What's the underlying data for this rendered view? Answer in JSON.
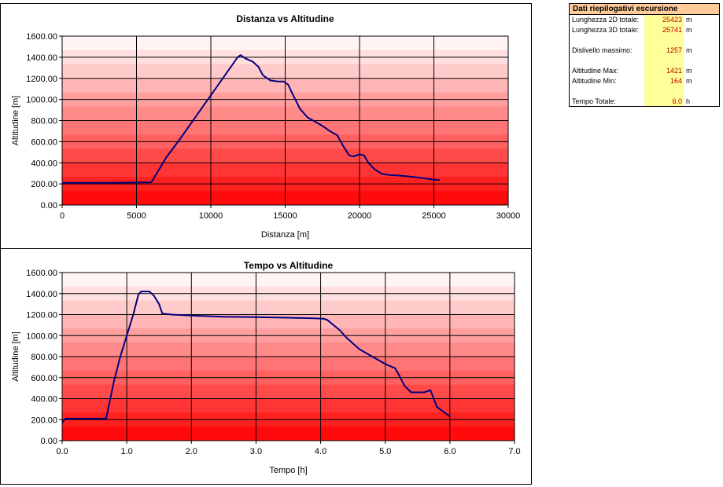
{
  "chart_data": [
    {
      "type": "line",
      "title": "Distanza vs Altitudine",
      "xlabel": "Distanza [m]",
      "ylabel": "Altitudine [m]",
      "xlim": [
        0,
        30000
      ],
      "ylim": [
        0,
        1600
      ],
      "xticks": [
        0,
        5000,
        10000,
        15000,
        20000,
        25000,
        30000
      ],
      "xtick_labels": [
        "0",
        "5000",
        "10000",
        "15000",
        "20000",
        "25000",
        "30000"
      ],
      "yticks": [
        0,
        200,
        400,
        600,
        800,
        1000,
        1200,
        1400,
        1600
      ],
      "ytick_labels": [
        "0.00",
        "200.00",
        "400.00",
        "600.00",
        "800.00",
        "1000.00",
        "1200.00",
        "1400.00",
        "1600.00"
      ],
      "grid": true,
      "line_color": "#000080",
      "series": [
        {
          "x": [
            0,
            100,
            3000,
            6000,
            7000,
            8000,
            9000,
            10000,
            11000,
            11800,
            12000,
            12300,
            12800,
            13200,
            13500,
            14000,
            14500,
            14900,
            15200,
            15500,
            16000,
            16500,
            17000,
            17500,
            18000,
            18500,
            18900,
            19300,
            19600,
            20000,
            20300,
            20600,
            21000,
            21500,
            22000,
            23000,
            24000,
            25000,
            25400
          ],
          "y": [
            200,
            210,
            210,
            215,
            450,
            640,
            840,
            1040,
            1240,
            1400,
            1420,
            1390,
            1360,
            1310,
            1230,
            1180,
            1170,
            1170,
            1140,
            1050,
            910,
            830,
            790,
            750,
            700,
            660,
            560,
            470,
            460,
            480,
            470,
            400,
            340,
            295,
            285,
            275,
            260,
            240,
            235
          ]
        }
      ]
    },
    {
      "type": "line",
      "title": "Tempo vs Altitudine",
      "xlabel": "Tempo [h]",
      "ylabel": "Altitudine [m]",
      "xlim": [
        0,
        7
      ],
      "ylim": [
        0,
        1600
      ],
      "xticks": [
        0,
        1,
        2,
        3,
        4,
        5,
        6,
        7
      ],
      "xtick_labels": [
        "0.0",
        "1.0",
        "2.0",
        "3.0",
        "4.0",
        "5.0",
        "6.0",
        "7.0"
      ],
      "yticks": [
        0,
        200,
        400,
        600,
        800,
        1000,
        1200,
        1400,
        1600
      ],
      "ytick_labels": [
        "0.00",
        "200.00",
        "400.00",
        "600.00",
        "800.00",
        "1000.00",
        "1200.00",
        "1400.00",
        "1600.00"
      ],
      "grid": true,
      "line_color": "#000080",
      "series": [
        {
          "x": [
            0,
            0.05,
            0.3,
            0.68,
            0.8,
            0.9,
            1.0,
            1.1,
            1.18,
            1.22,
            1.35,
            1.42,
            1.5,
            1.55,
            1.7,
            2.0,
            2.5,
            3.0,
            3.5,
            3.9,
            4.05,
            4.1,
            4.3,
            4.4,
            4.6,
            4.8,
            5.0,
            5.15,
            5.2,
            5.3,
            5.4,
            5.6,
            5.7,
            5.8,
            6.0
          ],
          "y": [
            170,
            210,
            210,
            210,
            560,
            800,
            1000,
            1200,
            1390,
            1420,
            1420,
            1380,
            1300,
            1210,
            1200,
            1190,
            1180,
            1175,
            1170,
            1165,
            1160,
            1150,
            1050,
            980,
            870,
            800,
            730,
            690,
            640,
            520,
            460,
            460,
            480,
            320,
            230
          ]
        }
      ]
    }
  ],
  "summary": {
    "title": "Dati riepilogativi escursione",
    "rows": [
      {
        "label": "Lunghezza 2D totale:",
        "value": "25423",
        "unit": "m"
      },
      {
        "label": "Lunghezza 3D totale:",
        "value": "25741",
        "unit": "m"
      },
      {
        "label": "Dislivello massimo:",
        "value": "1257",
        "unit": "m"
      },
      {
        "label": "Altitudine Max:",
        "value": "1421",
        "unit": "m"
      },
      {
        "label": "Altitudine Min:",
        "value": "164",
        "unit": "m"
      },
      {
        "label": "Tempo Totale:",
        "value": "6.0",
        "unit": "h"
      }
    ]
  }
}
